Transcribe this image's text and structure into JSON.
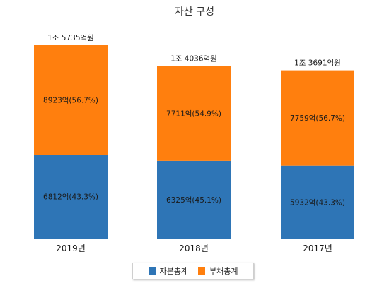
{
  "chart_data": {
    "type": "bar",
    "stacked": true,
    "title": "자산 구성",
    "categories": [
      "2019년",
      "2018년",
      "2017년"
    ],
    "totals": [
      "1조 5735억원",
      "1조 4036억원",
      "1조 3691억원"
    ],
    "total_values": [
      15735,
      14036,
      13691
    ],
    "unit": "억원",
    "series": [
      {
        "name": "자본총계",
        "values": [
          6812,
          6325,
          5932
        ],
        "labels": [
          "6812억(43.3%)",
          "6325억(45.1%)",
          "5932억(43.3%)"
        ],
        "color": "#2e75b6"
      },
      {
        "name": "부채총계",
        "values": [
          8923,
          7711,
          7759
        ],
        "labels": [
          "8923억(56.7%)",
          "7711억(54.9%)",
          "7759억(56.7%)"
        ],
        "color": "#ff7f0e"
      }
    ],
    "ylim": [
      0,
      15735
    ],
    "legend_position": "bottom",
    "grid": false
  }
}
